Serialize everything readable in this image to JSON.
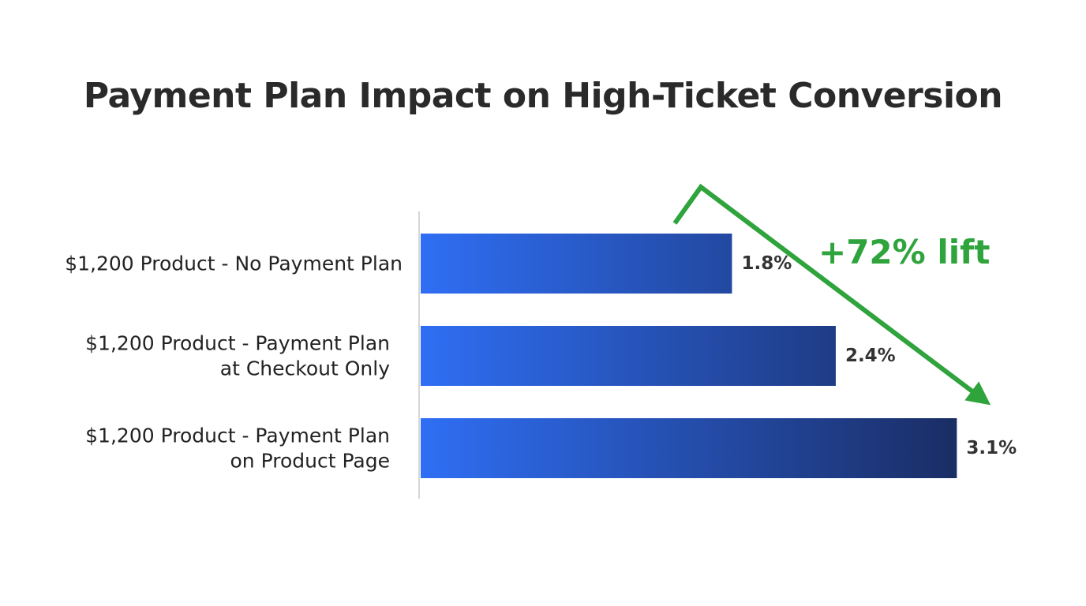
{
  "chart_data": {
    "type": "bar",
    "orientation": "horizontal",
    "title": "Payment Plan Impact on High-Ticket Conversion",
    "xlabel": "",
    "ylabel": "",
    "categories": [
      [
        "$1,200 Product - No Payment Plan"
      ],
      [
        "$1,200 Product - Payment Plan",
        "at Checkout Only"
      ],
      [
        "$1,200 Product - Payment Plan",
        "on Product Page"
      ]
    ],
    "values": [
      1.8,
      2.4,
      3.1
    ],
    "value_labels": [
      "1.8%",
      "2.4%",
      "3.1%"
    ],
    "xlim": [
      0,
      3.5
    ],
    "grid": false,
    "annotations": [
      {
        "text": "+72% lift",
        "color": "#2fa33c",
        "arrow": "from first bar to last bar"
      }
    ],
    "colors": {
      "bar_gradient_start": "#2f6ef4",
      "bar_gradient_end": "#1a2d64",
      "title": "#2a2a2a",
      "label": "#222222",
      "value_label": "#333333",
      "axis": "#d6d6d6",
      "annotation": "#2fa33c"
    }
  }
}
